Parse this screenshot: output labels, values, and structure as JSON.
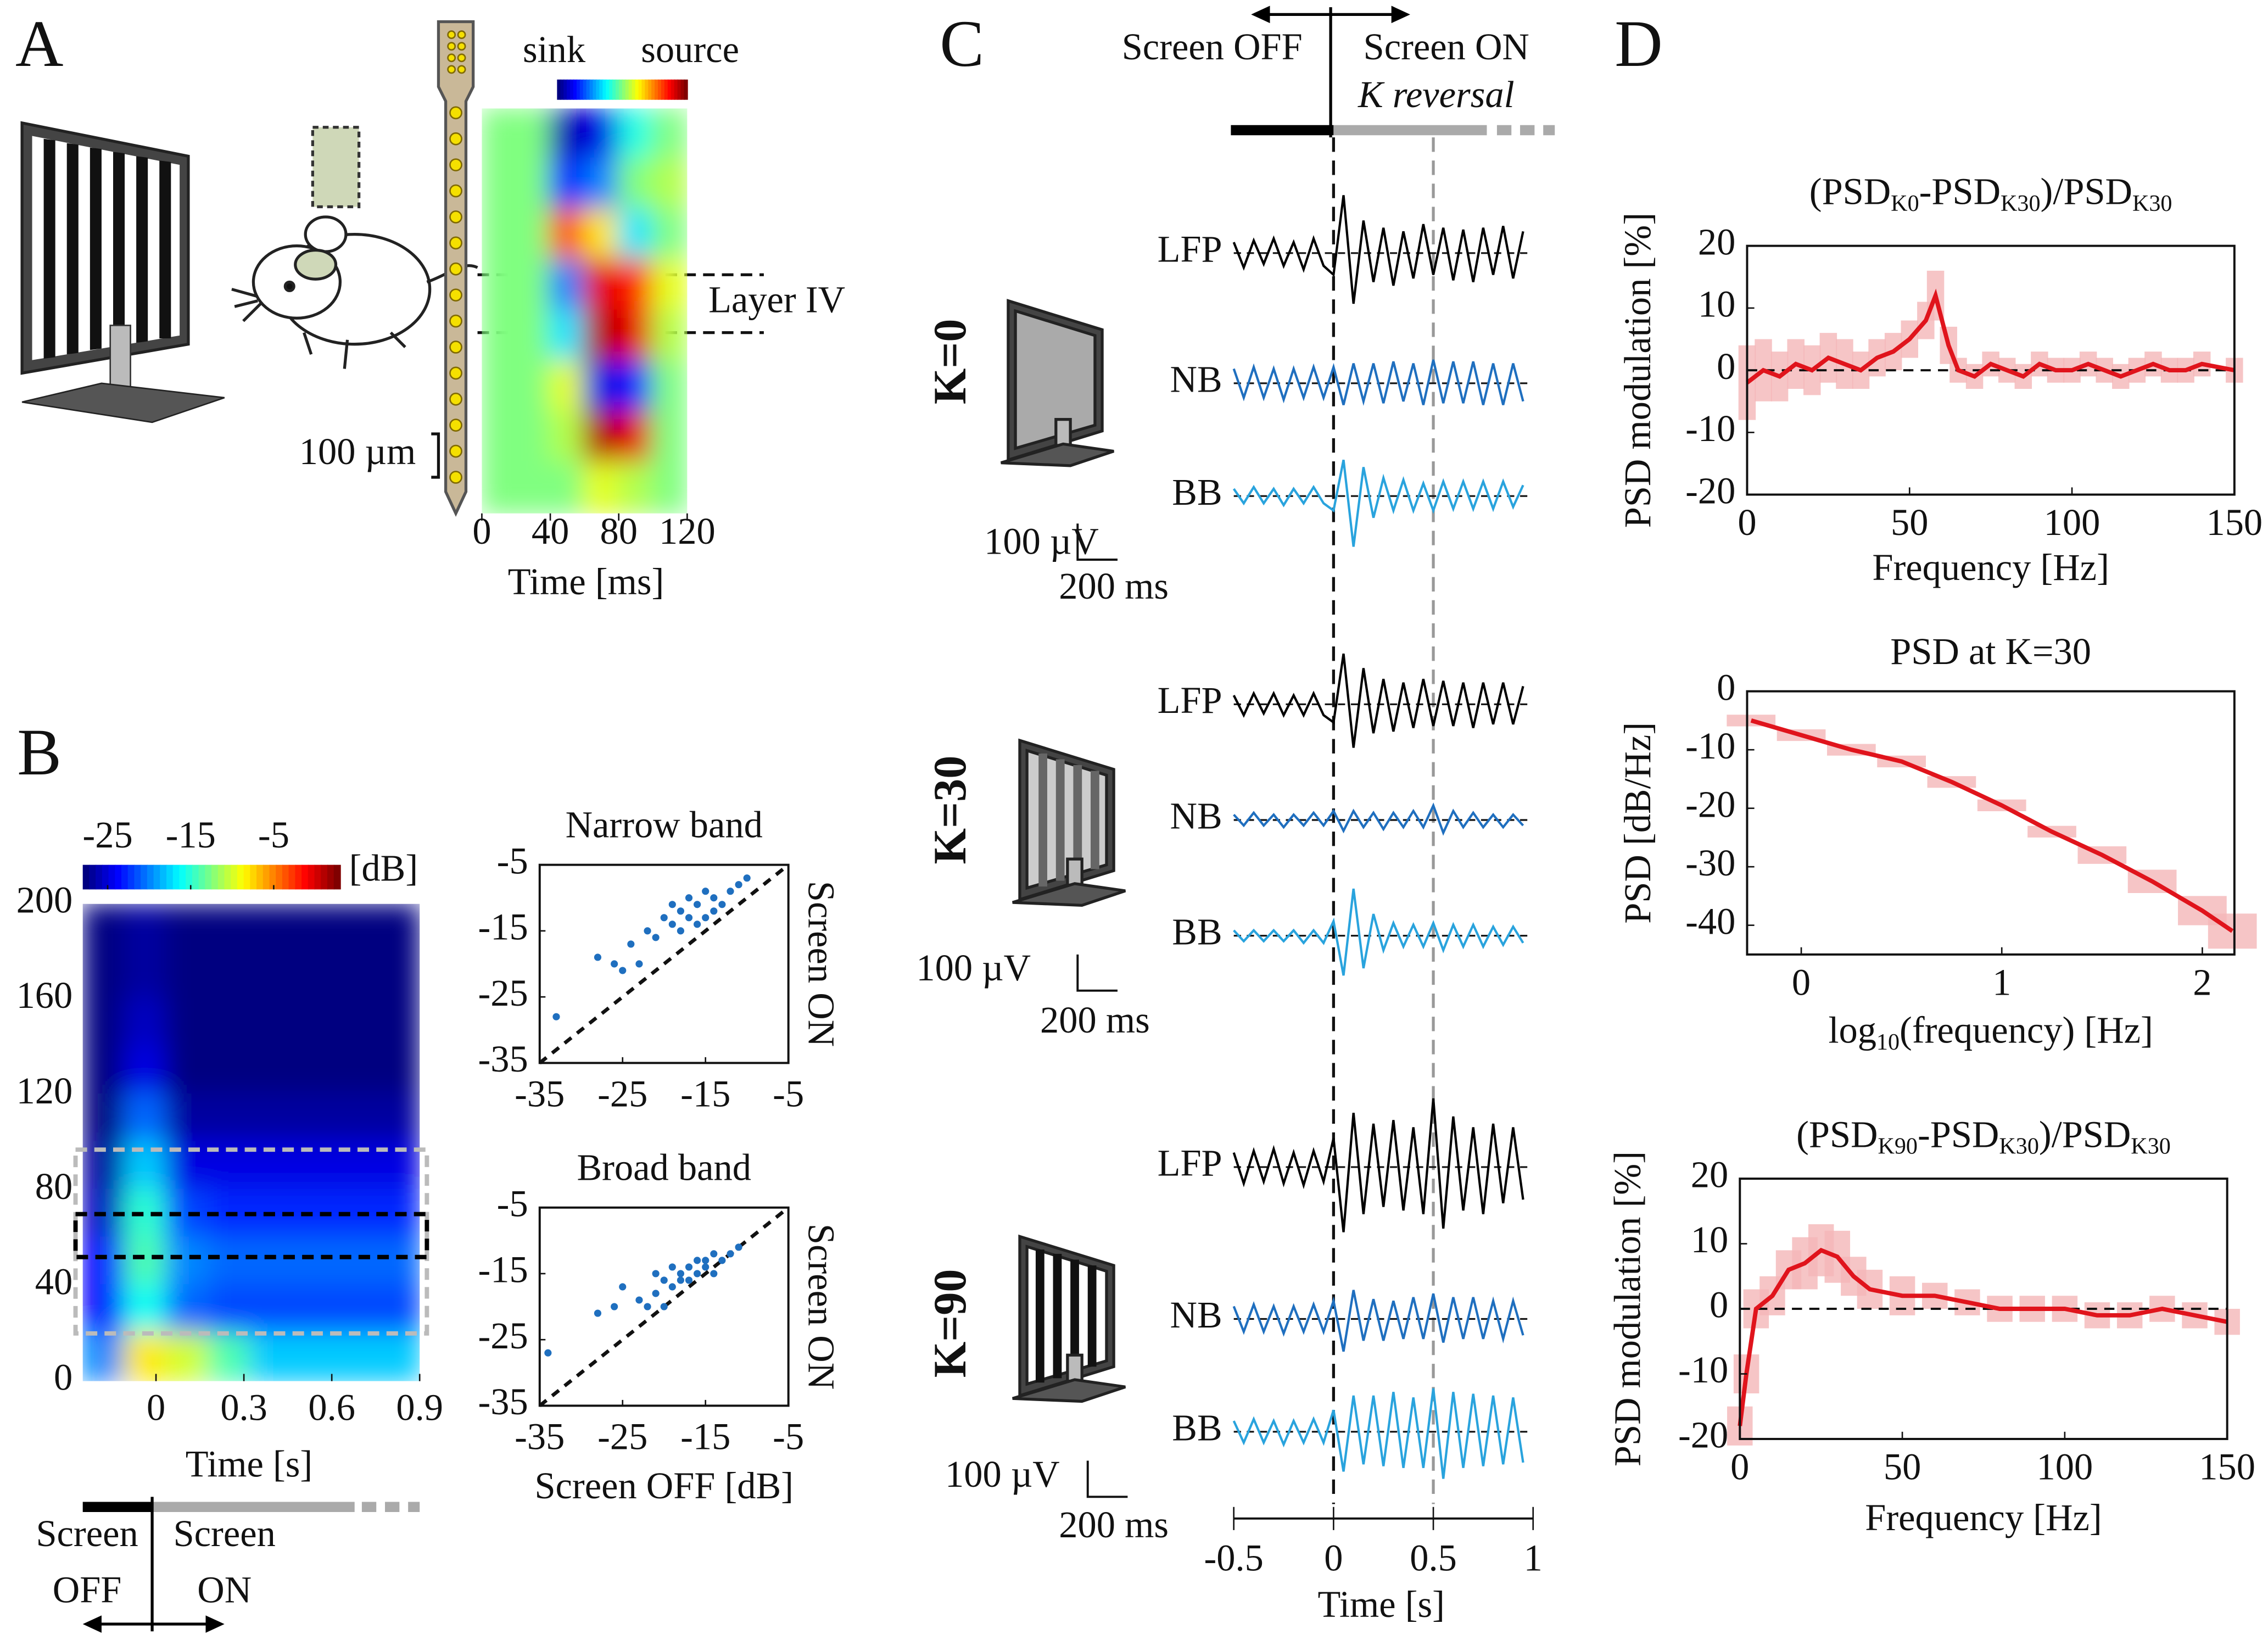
{
  "labels": {
    "a": "A",
    "b": "B",
    "c": "C",
    "d": "D"
  },
  "panel_a": {
    "csd": {
      "type": "heatmap",
      "sink_label": "sink",
      "source_label": "source",
      "clim": [
        -1,
        1
      ],
      "matrix": [
        [
          0,
          0,
          -0.9,
          -0.8,
          -0.2,
          0
        ],
        [
          0,
          0,
          -0.7,
          -0.5,
          0,
          0.1
        ],
        [
          0,
          0,
          0.6,
          0.3,
          -0.3,
          0
        ],
        [
          0,
          0,
          -0.5,
          0.8,
          0.7,
          0.2
        ],
        [
          0,
          0,
          -0.3,
          0.9,
          0.8,
          0.1
        ],
        [
          0,
          0,
          0.2,
          -0.8,
          -0.7,
          0
        ],
        [
          0,
          0,
          0.1,
          0.9,
          0.8,
          0
        ],
        [
          0,
          0,
          0,
          0.2,
          0.1,
          0
        ]
      ],
      "xlim": [
        0,
        120
      ],
      "xticks": [
        0,
        40,
        80,
        120
      ],
      "xlabel": "Time [ms]",
      "layer_label": "Layer IV",
      "scale_label": "100 µm"
    }
  },
  "panel_b": {
    "spectrogram": {
      "type": "heatmap",
      "xlim": [
        -0.25,
        0.9
      ],
      "xticks": [
        0,
        0.3,
        0.6,
        0.9
      ],
      "ylim": [
        0,
        200
      ],
      "yticks": [
        0,
        40,
        80,
        120,
        160,
        200
      ],
      "xlabel": "Time [s]",
      "clim": [
        -28,
        3
      ],
      "cticks": [
        -25,
        -15,
        -5
      ],
      "unit": "[dB]",
      "matrix": [
        [
          -28,
          -27,
          -28,
          -28,
          -28,
          -28,
          -28,
          -28
        ],
        [
          -28,
          -27,
          -28,
          -28,
          -28,
          -28,
          -28,
          -28
        ],
        [
          -28,
          -26,
          -28,
          -28,
          -28,
          -28,
          -28,
          -28
        ],
        [
          -28,
          -25,
          -28,
          -28,
          -28,
          -28,
          -28,
          -28
        ],
        [
          -28,
          -21,
          -27,
          -27,
          -27,
          -27,
          -27,
          -27
        ],
        [
          -27,
          -18,
          -25,
          -25,
          -25,
          -25,
          -25,
          -25
        ],
        [
          -26,
          -15,
          -22,
          -23,
          -23,
          -23,
          -23,
          -23
        ],
        [
          -24,
          -14,
          -20,
          -21,
          -21,
          -21,
          -21,
          -21
        ],
        [
          -24,
          -16,
          -21,
          -22,
          -22,
          -22,
          -22,
          -22
        ],
        [
          -20,
          -8,
          -10,
          -14,
          -18,
          -18,
          -18,
          -18
        ]
      ],
      "bands": [
        {
          "ylim": [
            20,
            97
          ],
          "color": "#bbbbbb"
        },
        {
          "ylim": [
            52,
            70
          ],
          "color": "#000000"
        }
      ]
    },
    "timeline": {
      "off": [
        "Screen",
        "OFF"
      ],
      "on": [
        "Screen",
        "ON"
      ]
    },
    "scatters": [
      {
        "type": "scatter",
        "title": "Narrow band",
        "ylabel": "Screen ON",
        "color": "#1f6fbf",
        "xlim": [
          -35,
          -5
        ],
        "ylim": [
          -35,
          -5
        ],
        "xticks": [
          -35,
          -25,
          -15,
          -5
        ],
        "yticks": [
          -35,
          -25,
          -15,
          -5
        ],
        "x": [
          -33,
          -28,
          -26,
          -25,
          -24,
          -23,
          -22,
          -21,
          -20,
          -19,
          -19,
          -18,
          -18,
          -17,
          -17,
          -16,
          -16,
          -15,
          -15,
          -14,
          -14,
          -13,
          -12,
          -11,
          -10
        ],
        "y": [
          -28,
          -19,
          -20,
          -21,
          -17,
          -20,
          -15,
          -16,
          -13,
          -14,
          -11,
          -15,
          -12,
          -13,
          -10,
          -14,
          -11,
          -13,
          -9,
          -12,
          -10,
          -11,
          -9,
          -8,
          -7
        ]
      },
      {
        "type": "scatter",
        "title": "Broad band",
        "ylabel": "Screen ON",
        "xlabel": "Screen OFF [dB]",
        "color": "#1f6fbf",
        "xlim": [
          -35,
          -5
        ],
        "ylim": [
          -35,
          -5
        ],
        "xticks": [
          -35,
          -25,
          -15,
          -5
        ],
        "yticks": [
          -35,
          -25,
          -15,
          -5
        ],
        "x": [
          -34,
          -28,
          -26,
          -25,
          -23,
          -22,
          -21,
          -21,
          -20,
          -20,
          -19,
          -19,
          -18,
          -18,
          -17,
          -17,
          -16,
          -16,
          -15,
          -15,
          -14,
          -14,
          -13,
          -12,
          -11
        ],
        "y": [
          -27,
          -21,
          -20,
          -17,
          -19,
          -20,
          -18,
          -15,
          -20,
          -16,
          -17,
          -14,
          -16,
          -15,
          -14,
          -16,
          -13,
          -15,
          -13,
          -14,
          -12,
          -15,
          -13,
          -12,
          -11
        ]
      }
    ]
  },
  "panel_c": {
    "type": "traces",
    "off_label": "Screen OFF",
    "on_label": "Screen ON",
    "event_label": "K reversal",
    "xlim": [
      -0.5,
      1
    ],
    "xticks": [
      -0.5,
      0,
      0.5,
      1
    ],
    "xlabel": "Time [s]",
    "markers": [
      0,
      0.5
    ],
    "x": [
      -0.5,
      -0.45,
      -0.4,
      -0.35,
      -0.3,
      -0.25,
      -0.2,
      -0.15,
      -0.1,
      -0.05,
      0,
      0.05,
      0.1,
      0.15,
      0.2,
      0.25,
      0.3,
      0.35,
      0.4,
      0.45,
      0.5,
      0.55,
      0.6,
      0.65,
      0.7,
      0.75,
      0.8,
      0.85,
      0.9,
      0.95
    ],
    "rows": [
      {
        "label": "K=0",
        "amp_bar": {
          "value": 100,
          "label": "100 µV"
        },
        "time_bar": {
          "value": 0.2,
          "label": "200 ms"
        },
        "traces": [
          {
            "name": "LFP",
            "color": "#000000",
            "values": [
              30,
              -40,
              35,
              -30,
              40,
              -35,
              30,
              -45,
              40,
              -35,
              -60,
              160,
              -140,
              90,
              -80,
              70,
              -90,
              60,
              -70,
              80,
              -60,
              70,
              -75,
              65,
              -80,
              70,
              -60,
              75,
              -70,
              60
            ]
          },
          {
            "name": "NB",
            "color": "#1f6fbf",
            "values": [
              40,
              -40,
              45,
              -40,
              40,
              -45,
              40,
              -40,
              45,
              -40,
              45,
              -60,
              55,
              -50,
              55,
              -55,
              60,
              -50,
              55,
              -60,
              65,
              -55,
              60,
              -55,
              60,
              -60,
              55,
              -60,
              55,
              -50
            ]
          },
          {
            "name": "BB",
            "color": "#29a3dd",
            "values": [
              20,
              -20,
              25,
              -20,
              20,
              -25,
              20,
              -20,
              25,
              -20,
              -40,
              100,
              -140,
              80,
              -60,
              50,
              -40,
              45,
              -40,
              35,
              -40,
              40,
              -35,
              40,
              -35,
              40,
              -35,
              40,
              -30,
              30
            ]
          }
        ]
      },
      {
        "label": "K=30",
        "amp_bar": {
          "value": 100,
          "label": "100 µV"
        },
        "time_bar": {
          "value": 0.2,
          "label": "200 ms"
        },
        "traces": [
          {
            "name": "LFP",
            "color": "#000000",
            "values": [
              25,
              -30,
              30,
              -25,
              30,
              -30,
              25,
              -30,
              30,
              -30,
              -50,
              140,
              -120,
              100,
              -80,
              70,
              -75,
              60,
              -65,
              70,
              -60,
              65,
              -60,
              60,
              -65,
              60,
              -55,
              60,
              -55,
              50
            ]
          },
          {
            "name": "NB",
            "color": "#1f6fbf",
            "values": [
              15,
              -15,
              20,
              -15,
              15,
              -20,
              15,
              -15,
              20,
              -15,
              25,
              -30,
              25,
              -20,
              20,
              -25,
              20,
              -20,
              25,
              -20,
              40,
              -35,
              25,
              -20,
              20,
              -20,
              15,
              -20,
              15,
              -15
            ]
          },
          {
            "name": "BB",
            "color": "#29a3dd",
            "values": [
              15,
              -15,
              15,
              -15,
              15,
              -15,
              15,
              -20,
              15,
              -20,
              40,
              -110,
              130,
              -90,
              60,
              -40,
              35,
              -30,
              30,
              -30,
              35,
              -40,
              30,
              -30,
              30,
              -30,
              25,
              -25,
              25,
              -20
            ]
          }
        ]
      },
      {
        "label": "K=90",
        "amp_bar": {
          "value": 100,
          "label": "100 µV"
        },
        "time_bar": {
          "value": 0.2,
          "label": "200 ms"
        },
        "traces": [
          {
            "name": "LFP",
            "color": "#000000",
            "values": [
              40,
              -45,
              45,
              -40,
              50,
              -45,
              40,
              -50,
              45,
              -40,
              80,
              -180,
              150,
              -130,
              120,
              -110,
              130,
              -120,
              110,
              -130,
              190,
              -170,
              140,
              -120,
              110,
              -130,
              120,
              -100,
              110,
              -90
            ]
          },
          {
            "name": "NB",
            "color": "#1f6fbf",
            "values": [
              35,
              -35,
              40,
              -35,
              35,
              -40,
              35,
              -35,
              40,
              -35,
              50,
              -90,
              80,
              -60,
              55,
              -60,
              50,
              -55,
              60,
              -55,
              70,
              -65,
              60,
              -55,
              60,
              -55,
              50,
              -55,
              50,
              -45
            ]
          },
          {
            "name": "BB",
            "color": "#29a3dd",
            "values": [
              30,
              -30,
              35,
              -30,
              30,
              -35,
              30,
              -30,
              35,
              -30,
              60,
              -110,
              100,
              -90,
              100,
              -95,
              110,
              -100,
              95,
              -100,
              120,
              -130,
              110,
              -100,
              105,
              -95,
              100,
              -90,
              95,
              -85
            ]
          }
        ]
      }
    ]
  },
  "panel_d": {
    "charts": [
      {
        "type": "line",
        "title_parts": [
          "(PSD",
          "K0",
          "-PSD",
          "K30",
          ")/PSD",
          "K30"
        ],
        "ylabel": "PSD modulation [%]",
        "xlabel_parts": [
          "Frequency [Hz]"
        ],
        "xlim": [
          0,
          150
        ],
        "xticks": [
          0,
          50,
          100,
          150
        ],
        "ylim": [
          -20,
          20
        ],
        "yticks": [
          -20,
          -10,
          0,
          10,
          20
        ],
        "zero_line": true,
        "color": "#e0141c",
        "error_color": "#f5b7b9",
        "x": [
          0,
          5,
          10,
          15,
          20,
          25,
          30,
          35,
          40,
          45,
          50,
          55,
          58,
          62,
          65,
          70,
          75,
          80,
          85,
          90,
          95,
          100,
          105,
          110,
          115,
          120,
          125,
          130,
          135,
          140,
          150
        ],
        "values": [
          -2,
          0,
          -1,
          1,
          0,
          2,
          1,
          0,
          2,
          3,
          5,
          8,
          12,
          4,
          0,
          -1,
          1,
          0,
          -1,
          1,
          0,
          0,
          1,
          0,
          -1,
          0,
          1,
          0,
          0,
          1,
          0
        ],
        "error": [
          6,
          5,
          4,
          4,
          4,
          4,
          4,
          3,
          3,
          3,
          3,
          3,
          4,
          3,
          2,
          2,
          2,
          2,
          2,
          2,
          2,
          2,
          2,
          2,
          2,
          2,
          2,
          2,
          2,
          2,
          2
        ]
      },
      {
        "type": "line",
        "title_parts": [
          "PSD at K=30"
        ],
        "ylabel": "PSD [dB/Hz]",
        "xlabel_parts": [
          "log",
          "10",
          "(frequency) [Hz]"
        ],
        "xlim": [
          -0.27,
          2.16
        ],
        "xticks": [
          0,
          1,
          2
        ],
        "ylim": [
          -45,
          0
        ],
        "yticks": [
          -40,
          -30,
          -20,
          -10,
          0
        ],
        "zero_line": false,
        "color": "#e0141c",
        "error_color": "#f5b7b9",
        "x": [
          -0.25,
          0,
          0.25,
          0.5,
          0.75,
          1,
          1.25,
          1.5,
          1.75,
          2,
          2.15
        ],
        "values": [
          -5,
          -7.5,
          -10,
          -12,
          -15.5,
          -19.5,
          -24,
          -28,
          -32.5,
          -37.5,
          -41
        ],
        "error": [
          1,
          1,
          1,
          1,
          1,
          1,
          1,
          1.5,
          2,
          2.5,
          3
        ]
      },
      {
        "type": "line",
        "title_parts": [
          "(PSD",
          "K90",
          "-PSD",
          "K30",
          ")/PSD",
          "K30"
        ],
        "ylabel": "PSD modulation [%]",
        "xlabel_parts": [
          "Frequency [Hz]"
        ],
        "xlim": [
          0,
          150
        ],
        "xticks": [
          0,
          50,
          100,
          150
        ],
        "ylim": [
          -20,
          20
        ],
        "yticks": [
          -20,
          -10,
          0,
          10,
          20
        ],
        "zero_line": true,
        "color": "#e0141c",
        "error_color": "#f5b7b9",
        "x": [
          0,
          2,
          5,
          10,
          15,
          20,
          25,
          30,
          35,
          40,
          50,
          60,
          70,
          80,
          90,
          100,
          110,
          120,
          130,
          140,
          150
        ],
        "values": [
          -18,
          -10,
          0,
          2,
          6,
          7,
          9,
          8,
          5,
          3,
          2,
          2,
          1,
          0,
          0,
          0,
          -1,
          -1,
          0,
          -1,
          -2
        ],
        "error": [
          3,
          3,
          3,
          3,
          3,
          4,
          4,
          4,
          3,
          3,
          3,
          2,
          2,
          2,
          2,
          2,
          2,
          2,
          2,
          2,
          2
        ]
      }
    ]
  }
}
